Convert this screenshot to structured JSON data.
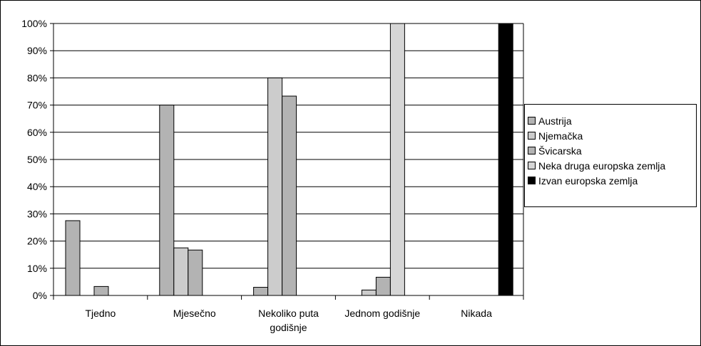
{
  "chart_data": {
    "type": "bar",
    "categories": [
      "Tjedno",
      "Mjesečno",
      "Nekoliko puta\ngodišnje",
      "Jednom godišnje",
      "Nikada"
    ],
    "series": [
      {
        "name": "Austrija",
        "color": "#b3b3b3",
        "values": [
          27.5,
          70,
          3,
          0,
          0
        ]
      },
      {
        "name": "Njemačka",
        "color": "#cccccc",
        "values": [
          0,
          17.5,
          80,
          2,
          0
        ]
      },
      {
        "name": "Švicarska",
        "color": "#b3b3b3",
        "values": [
          3.3,
          16.7,
          73.3,
          6.7,
          0
        ]
      },
      {
        "name": "Neka druga europska zemlja",
        "color": "#d6d6d6",
        "values": [
          0,
          0,
          0,
          100,
          0
        ]
      },
      {
        "name": "Izvan europska zemlja",
        "color": "#000000",
        "values": [
          0,
          0,
          0,
          0,
          100
        ]
      }
    ],
    "y_ticks": [
      "0%",
      "10%",
      "20%",
      "30%",
      "40%",
      "50%",
      "60%",
      "70%",
      "80%",
      "90%",
      "100%"
    ],
    "ylim": [
      0,
      100
    ],
    "grid": true,
    "legend_position": "right"
  }
}
